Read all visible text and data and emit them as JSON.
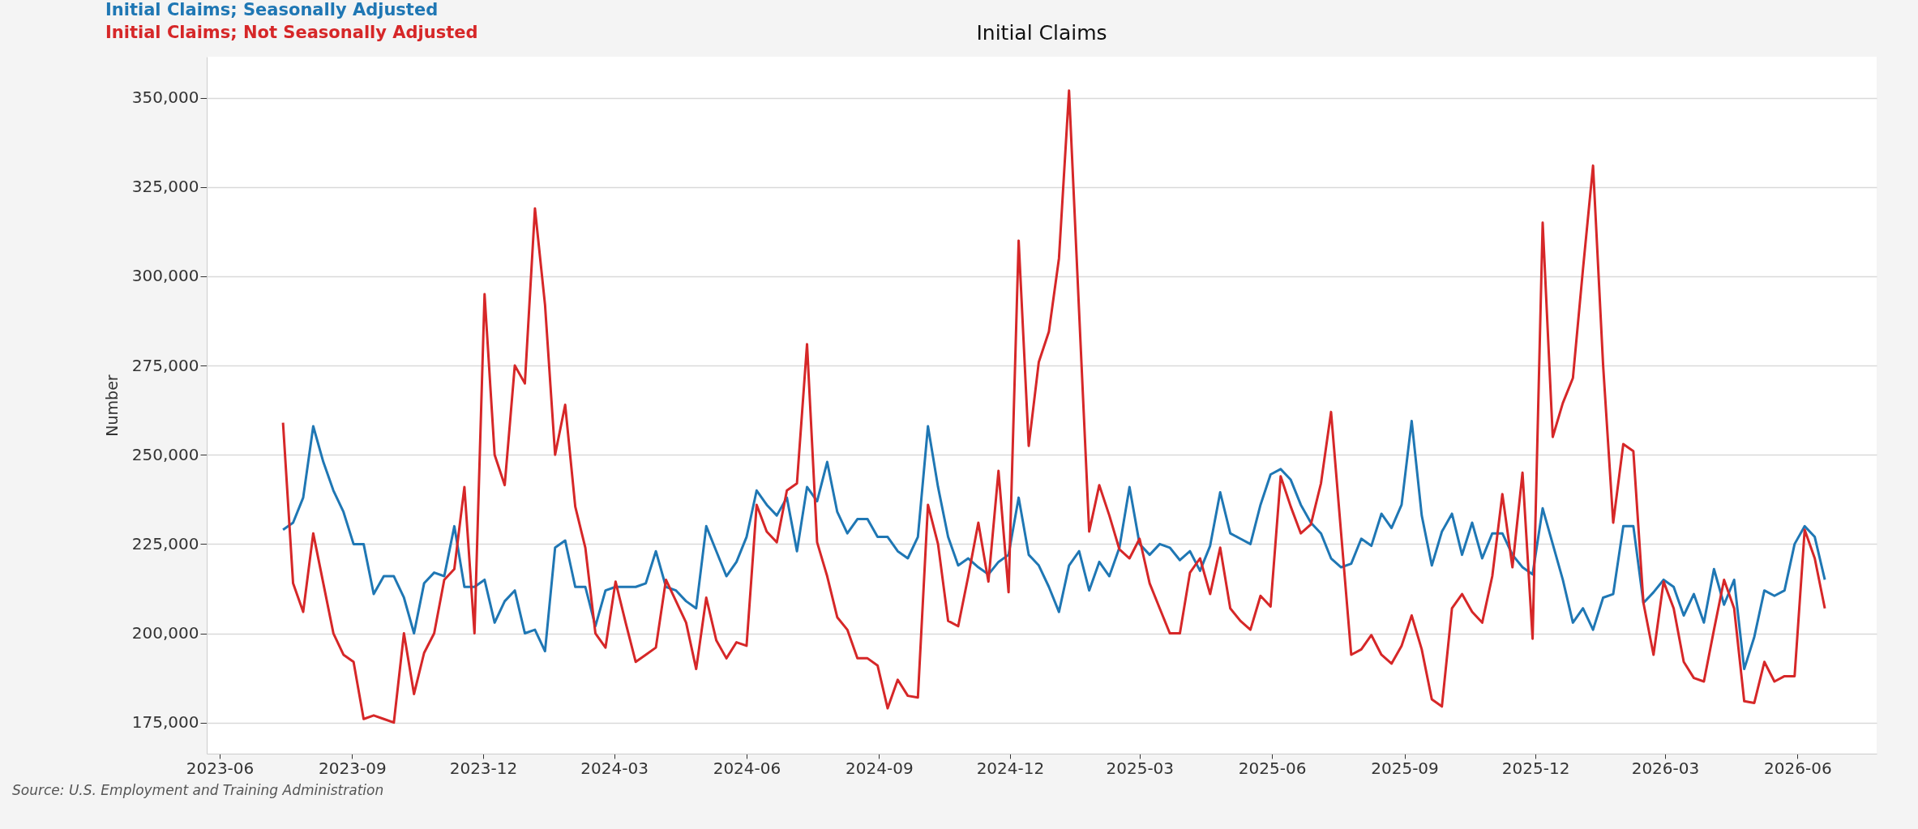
{
  "chart_data": {
    "type": "line",
    "title": "Initial Claims",
    "ylabel": "Number",
    "annotations": [
      "Source: U.S. Employment and Training Administration"
    ],
    "x": [
      "2023-07-15",
      "2023-07-22",
      "2023-07-29",
      "2023-08-05",
      "2023-08-12",
      "2023-08-19",
      "2023-08-26",
      "2023-09-02",
      "2023-09-09",
      "2023-09-16",
      "2023-09-23",
      "2023-09-30",
      "2023-10-07",
      "2023-10-14",
      "2023-10-21",
      "2023-10-28",
      "2023-11-04",
      "2023-11-11",
      "2023-11-18",
      "2023-11-25",
      "2023-12-02",
      "2023-12-09",
      "2023-12-16",
      "2023-12-23",
      "2023-12-30",
      "2024-01-06",
      "2024-01-13",
      "2024-01-20",
      "2024-01-27",
      "2024-02-03",
      "2024-02-10",
      "2024-02-17",
      "2024-02-24",
      "2024-03-02",
      "2024-03-09",
      "2024-03-16",
      "2024-03-23",
      "2024-03-30",
      "2024-04-06",
      "2024-04-13",
      "2024-04-20",
      "2024-04-27",
      "2024-05-04",
      "2024-05-11",
      "2024-05-18",
      "2024-05-25",
      "2024-06-01",
      "2024-06-08",
      "2024-06-15",
      "2024-06-22",
      "2024-06-29",
      "2024-07-06",
      "2024-07-13",
      "2024-07-20",
      "2024-07-27",
      "2024-08-03",
      "2024-08-10",
      "2024-08-17",
      "2024-08-24",
      "2024-08-31",
      "2024-09-07",
      "2024-09-14",
      "2024-09-21",
      "2024-09-28",
      "2024-10-05",
      "2024-10-12",
      "2024-10-19",
      "2024-10-26",
      "2024-11-02",
      "2024-11-09",
      "2024-11-16",
      "2024-11-23",
      "2024-11-30",
      "2024-12-07",
      "2024-12-14",
      "2024-12-21",
      "2024-12-28",
      "2025-01-04",
      "2025-01-11",
      "2025-01-18",
      "2025-01-25",
      "2025-02-01",
      "2025-02-08",
      "2025-02-15",
      "2025-02-22",
      "2025-03-01",
      "2025-03-08",
      "2025-03-15",
      "2025-03-22",
      "2025-03-29",
      "2025-04-05",
      "2025-04-12",
      "2025-04-19",
      "2025-04-26",
      "2025-05-03",
      "2025-05-10",
      "2025-05-17",
      "2025-05-24",
      "2025-05-31",
      "2025-06-07",
      "2025-06-14",
      "2025-06-21",
      "2025-06-28",
      "2025-07-05",
      "2025-07-12",
      "2025-07-19",
      "2025-07-26",
      "2025-08-02",
      "2025-08-09",
      "2025-08-16",
      "2025-08-23",
      "2025-08-30",
      "2025-09-06",
      "2025-09-13",
      "2025-09-20",
      "2025-09-27",
      "2025-10-04",
      "2025-10-11",
      "2025-10-18",
      "2025-10-25",
      "2025-11-01",
      "2025-11-08",
      "2025-11-15",
      "2025-11-22",
      "2025-11-29",
      "2025-12-06",
      "2025-12-13",
      "2025-12-20",
      "2025-12-27",
      "2026-01-03",
      "2026-01-10",
      "2026-01-17",
      "2026-01-24",
      "2026-01-31",
      "2026-02-07",
      "2026-02-14",
      "2026-02-21",
      "2026-02-28",
      "2026-03-07",
      "2026-03-14",
      "2026-03-21",
      "2026-03-28",
      "2026-04-04",
      "2026-04-11",
      "2026-04-18",
      "2026-04-25",
      "2026-05-02",
      "2026-05-09",
      "2026-05-16",
      "2026-05-23",
      "2026-05-30",
      "2026-06-06",
      "2026-06-13",
      "2026-06-20"
    ],
    "series": [
      {
        "name": "Initial Claims; Seasonally Adjusted",
        "color": "#1f77b4",
        "values": [
          229000,
          231000,
          238000,
          258000,
          248000,
          240000,
          234000,
          225000,
          225000,
          211000,
          216000,
          216000,
          210000,
          200000,
          214000,
          217000,
          216000,
          230000,
          213000,
          213000,
          215000,
          203000,
          209000,
          212000,
          200000,
          201000,
          195000,
          224000,
          226000,
          213000,
          213000,
          202000,
          212000,
          213000,
          213000,
          213000,
          214000,
          223000,
          213000,
          212000,
          209000,
          207000,
          230000,
          223000,
          216000,
          220000,
          227000,
          240000,
          236000,
          233000,
          238000,
          223000,
          241000,
          237000,
          248000,
          234000,
          228000,
          232000,
          232000,
          227000,
          227000,
          223000,
          221000,
          227000,
          258000,
          241000,
          227000,
          219000,
          221000,
          218500,
          216500,
          220000,
          222000,
          238000,
          222000,
          219000,
          213000,
          206000,
          219000,
          223000,
          212000,
          220000,
          216000,
          224000,
          241000,
          225000,
          222000,
          225000,
          224000,
          220500,
          223000,
          217500,
          224500,
          239500,
          228000,
          226500,
          225000,
          236000,
          244500,
          246000,
          243000,
          236000,
          231000,
          228000,
          221000,
          218500,
          219500,
          226500,
          224500,
          233500,
          229500,
          236000,
          259500,
          233000,
          219000,
          228500,
          233500,
          222000,
          231000,
          221000,
          228000,
          228000,
          222000,
          218500,
          216500,
          235000,
          225000,
          215000,
          203000,
          207000,
          201000,
          210000,
          211000,
          230000,
          230000,
          208500,
          211500,
          215000,
          213000,
          205000,
          211000,
          203000,
          218000,
          208000,
          215000,
          190000,
          199000,
          212000,
          210500,
          212000,
          225000,
          230000,
          227000,
          215000
        ]
      },
      {
        "name": "Initial Claims; Not Seasonally Adjusted",
        "color": "#d62728",
        "values": [
          259000,
          214000,
          206000,
          228000,
          214000,
          200000,
          194000,
          192000,
          176000,
          177000,
          176000,
          175000,
          200000,
          183000,
          194500,
          200000,
          215000,
          218000,
          241000,
          200000,
          295000,
          250000,
          241500,
          275000,
          270000,
          319000,
          292000,
          250000,
          264000,
          235500,
          224000,
          200000,
          196000,
          214500,
          203000,
          192000,
          194000,
          196000,
          215000,
          209000,
          203000,
          190000,
          210000,
          198000,
          193000,
          197500,
          196500,
          236000,
          228500,
          225500,
          240000,
          242000,
          281000,
          225500,
          216000,
          204500,
          201000,
          193000,
          193000,
          191000,
          179000,
          187000,
          182500,
          182000,
          236000,
          225000,
          203500,
          202000,
          216000,
          231000,
          214500,
          245500,
          211500,
          310000,
          252500,
          276000,
          284500,
          305000,
          352000,
          290000,
          228500,
          241500,
          233000,
          223500,
          221000,
          226500,
          214000,
          207000,
          200000,
          200000,
          217000,
          221000,
          211000,
          224000,
          207000,
          203500,
          201000,
          210500,
          207500,
          244000,
          235500,
          228000,
          230500,
          242000,
          262000,
          228000,
          194000,
          195500,
          199500,
          194000,
          191500,
          196500,
          205000,
          195500,
          181500,
          179500,
          207000,
          211000,
          206000,
          203000,
          216000,
          239000,
          218500,
          245000,
          198500,
          315000,
          255000,
          264500,
          271500,
          302000,
          331000,
          275000,
          231000,
          253000,
          251000,
          208500,
          194000,
          214500,
          207000,
          192000,
          187500,
          186500,
          201000,
          215000,
          207000,
          181000,
          180500,
          192000,
          186500,
          188000,
          188000,
          229000,
          221000,
          207000
        ]
      }
    ],
    "xlim": [
      "2023-05-23",
      "2026-07-26"
    ],
    "xticks": [
      "2023-06",
      "2023-09",
      "2023-12",
      "2024-03",
      "2024-06",
      "2024-09",
      "2024-12",
      "2025-03",
      "2025-06",
      "2025-09",
      "2025-12",
      "2026-03",
      "2026-06"
    ],
    "ylim": [
      166300,
      361500
    ],
    "yticks": [
      {
        "value": 175000,
        "label": "175,000"
      },
      {
        "value": 200000,
        "label": "200,000"
      },
      {
        "value": 225000,
        "label": "225,000"
      },
      {
        "value": 250000,
        "label": "250,000"
      },
      {
        "value": 275000,
        "label": "275,000"
      },
      {
        "value": 300000,
        "label": "300,000"
      },
      {
        "value": 325000,
        "label": "325,000"
      },
      {
        "value": 350000,
        "label": "350,000"
      }
    ],
    "grid": "y",
    "legend": "top left",
    "line_style": "solid"
  }
}
